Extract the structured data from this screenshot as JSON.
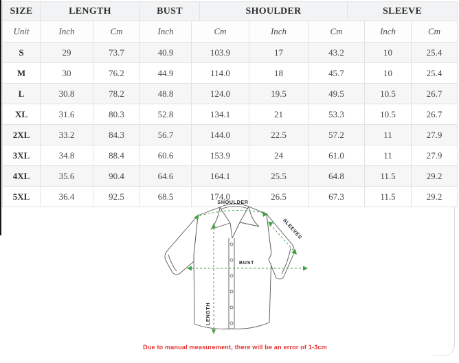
{
  "size_chart": {
    "header_groups": [
      "SIZE",
      "LENGTH",
      "BUST",
      "SHOULDER",
      "SLEEVE"
    ],
    "unit_row": [
      "Unit",
      "Inch",
      "Cm",
      "Inch",
      "Cm",
      "Inch",
      "Cm",
      "Inch",
      "Cm"
    ],
    "rows": [
      [
        "S",
        "29",
        "73.7",
        "40.9",
        "103.9",
        "17",
        "43.2",
        "10",
        "25.4"
      ],
      [
        "M",
        "30",
        "76.2",
        "44.9",
        "114.0",
        "18",
        "45.7",
        "10",
        "25.4"
      ],
      [
        "L",
        "30.8",
        "78.2",
        "48.8",
        "124.0",
        "19.5",
        "49.5",
        "10.5",
        "26.7"
      ],
      [
        "XL",
        "31.6",
        "80.3",
        "52.8",
        "134.1",
        "21",
        "53.3",
        "10.5",
        "26.7"
      ],
      [
        "2XL",
        "33.2",
        "84.3",
        "56.7",
        "144.0",
        "22.5",
        "57.2",
        "11",
        "27.9"
      ],
      [
        "3XL",
        "34.8",
        "88.4",
        "60.6",
        "153.9",
        "24",
        "61.0",
        "11",
        "27.9"
      ],
      [
        "4XL",
        "35.6",
        "90.4",
        "64.6",
        "164.1",
        "25.5",
        "64.8",
        "11.5",
        "29.2"
      ],
      [
        "5XL",
        "36.4",
        "92.5",
        "68.5",
        "174.0",
        "26.5",
        "67.3",
        "11.5",
        "29.2"
      ]
    ]
  },
  "diagram": {
    "labels": {
      "shoulder": "SHOULDER",
      "sleeves": "SLEEVES",
      "bust": "BUST",
      "length": "LENGTH"
    },
    "note": "Due to manual measurement, there will be an error of 1-3cm",
    "accent_color": "#43a047",
    "note_color": "#e53030",
    "outline_color": "#565656"
  }
}
